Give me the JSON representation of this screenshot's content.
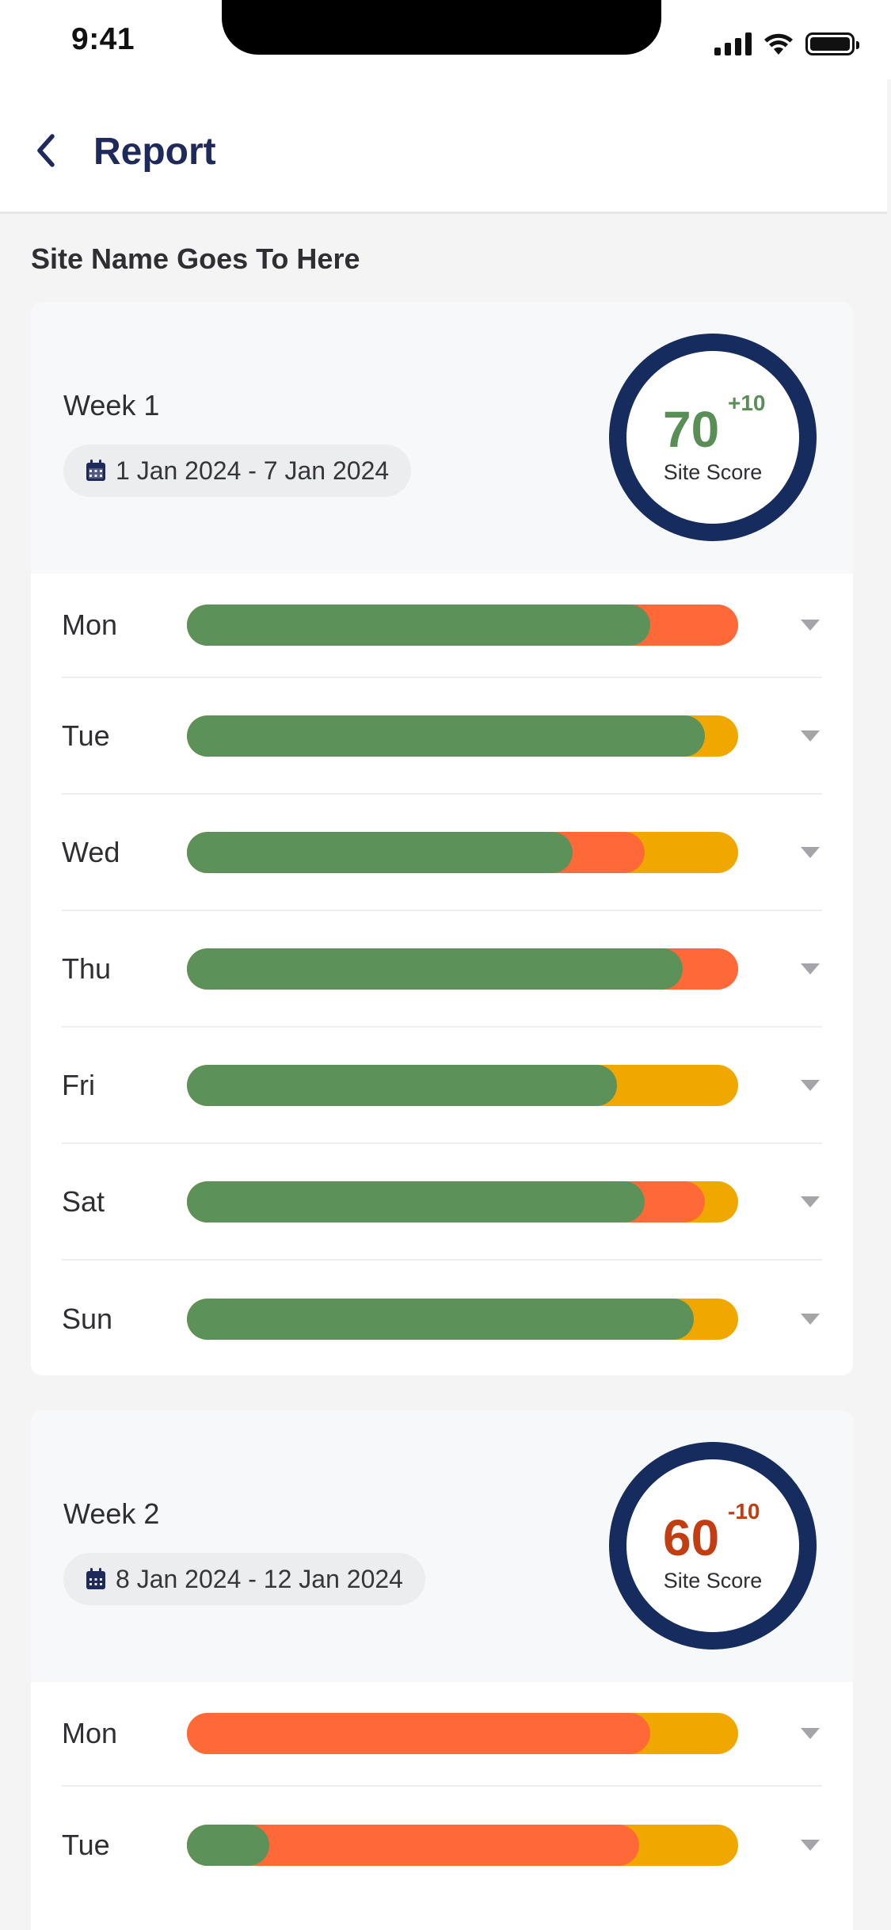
{
  "status_bar": {
    "time": "9:41"
  },
  "header": {
    "title": "Report"
  },
  "site": {
    "name": "Site Name Goes To Here"
  },
  "weeks": [
    {
      "label": "Week 1",
      "date_range": "1 Jan 2024 - 7 Jan 2024",
      "score": "70",
      "delta": "+10",
      "score_label": "Site Score",
      "days": [
        {
          "name": "Mon",
          "green": 0.84,
          "orange": 0.16,
          "yellow": 0.0
        },
        {
          "name": "Tue",
          "green": 0.94,
          "orange": 0.0,
          "yellow": 0.06
        },
        {
          "name": "Wed",
          "green": 0.7,
          "orange": 0.13,
          "yellow": 0.17
        },
        {
          "name": "Thu",
          "green": 0.9,
          "orange": 0.1,
          "yellow": 0.0
        },
        {
          "name": "Fri",
          "green": 0.78,
          "orange": 0.0,
          "yellow": 0.22
        },
        {
          "name": "Sat",
          "green": 0.83,
          "orange": 0.11,
          "yellow": 0.06
        },
        {
          "name": "Sun",
          "green": 0.92,
          "orange": 0.0,
          "yellow": 0.08
        }
      ]
    },
    {
      "label": "Week 2",
      "date_range": "8 Jan 2024 - 12 Jan 2024",
      "score": "60",
      "delta": "-10",
      "score_label": "Site Score",
      "days": [
        {
          "name": "Mon",
          "green": 0.0,
          "orange": 0.84,
          "yellow": 0.16
        },
        {
          "name": "Tue",
          "green": 0.15,
          "orange": 0.67,
          "yellow": 0.18
        }
      ]
    }
  ],
  "colors": {
    "good": "#5C9259",
    "warning": "#FF6937",
    "caution": "#F0A800",
    "ring": "#162B5E",
    "score_positive": "#5A8E57",
    "score_negative": "#C23D12"
  },
  "icons": {
    "back": "chevron-left-icon",
    "calendar": "calendar-icon",
    "expand": "chevron-down-icon"
  }
}
